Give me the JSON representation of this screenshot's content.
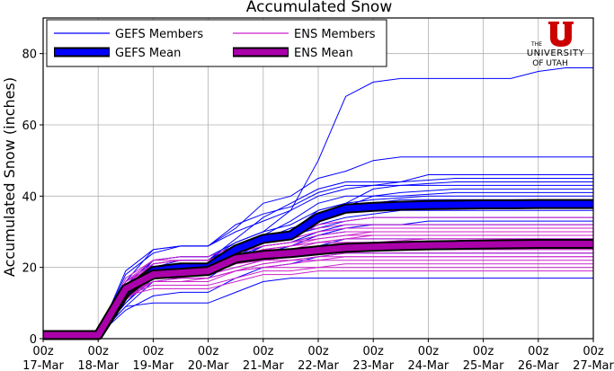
{
  "chart_data": {
    "type": "line",
    "title": "Accumulated Snow",
    "ylabel": "Accumulated Snow (inches)",
    "xlabel": "",
    "ylim": [
      0,
      90
    ],
    "yticks": [
      0,
      20,
      40,
      60,
      80
    ],
    "xticks": [
      {
        "hour": "00z",
        "date": "17-Mar"
      },
      {
        "hour": "00z",
        "date": "18-Mar"
      },
      {
        "hour": "00z",
        "date": "19-Mar"
      },
      {
        "hour": "00z",
        "date": "20-Mar"
      },
      {
        "hour": "00z",
        "date": "21-Mar"
      },
      {
        "hour": "00z",
        "date": "22-Mar"
      },
      {
        "hour": "00z",
        "date": "23-Mar"
      },
      {
        "hour": "00z",
        "date": "24-Mar"
      },
      {
        "hour": "00z",
        "date": "25-Mar"
      },
      {
        "hour": "00z",
        "date": "26-Mar"
      },
      {
        "hour": "00z",
        "date": "27-Mar"
      }
    ],
    "grid": true,
    "legend_position": "top-left",
    "legend": [
      {
        "label": "GEFS Members",
        "kind": "member",
        "color": "#0000ff"
      },
      {
        "label": "ENS Members",
        "kind": "member",
        "color": "#cc22cc"
      },
      {
        "label": "GEFS Mean",
        "kind": "mean",
        "color": "#0000ff"
      },
      {
        "label": "ENS Mean",
        "kind": "mean",
        "color": "#aa00aa"
      }
    ],
    "x_days": [
      0,
      1,
      1.5,
      2,
      2.5,
      3,
      3.5,
      4,
      4.5,
      5,
      5.5,
      6,
      6.5,
      7,
      7.5,
      8,
      8.5,
      9,
      9.5,
      10
    ],
    "series": [
      {
        "name": "GEFS Mean",
        "color": "#0000ff",
        "outline": "#000000",
        "values": [
          1,
          1,
          13,
          19,
          20,
          20,
          25,
          28,
          29,
          34,
          36.5,
          37,
          37.3,
          37.5,
          37.6,
          37.7,
          37.7,
          37.8,
          37.8,
          37.8
        ]
      },
      {
        "name": "ENS Mean",
        "color": "#aa00aa",
        "outline": "#000000",
        "values": [
          1,
          1,
          14,
          18,
          18.5,
          19,
          22.5,
          23.5,
          24,
          24.8,
          25.5,
          25.8,
          26,
          26.2,
          26.3,
          26.4,
          26.5,
          26.6,
          26.6,
          26.6
        ]
      }
    ],
    "gefs_members": [
      [
        1,
        1,
        16,
        25,
        26,
        26,
        31,
        38,
        40,
        45,
        47,
        50,
        51,
        51,
        51,
        51,
        51,
        51,
        51,
        51
      ],
      [
        1,
        1,
        12,
        20,
        22,
        22,
        27,
        30,
        36,
        50,
        68,
        72,
        73,
        73,
        73,
        73,
        73,
        75,
        76,
        76
      ],
      [
        1,
        1,
        14,
        21,
        22,
        22,
        28,
        34,
        38,
        42,
        44,
        44,
        44,
        44.5,
        45,
        45,
        45,
        45,
        45,
        45
      ],
      [
        1,
        1,
        10,
        18,
        19,
        19,
        23,
        27,
        30,
        36,
        38,
        42,
        43,
        43.5,
        44,
        44,
        44,
        44,
        44,
        44
      ],
      [
        1,
        1,
        18,
        24,
        26,
        26,
        30,
        33,
        36,
        40,
        42,
        43,
        44,
        46,
        46,
        46,
        46,
        46,
        46,
        46
      ],
      [
        1,
        1,
        13,
        20,
        21,
        21,
        25,
        28,
        31,
        33,
        37,
        40,
        41,
        41.5,
        42,
        42,
        42,
        42,
        42,
        42
      ],
      [
        1,
        1,
        15,
        22,
        23,
        23,
        27,
        30,
        32,
        36,
        38,
        39,
        39.5,
        40,
        40,
        40,
        40,
        40,
        40,
        40
      ],
      [
        1,
        1,
        11,
        18,
        19,
        19,
        23,
        27,
        29,
        34,
        36,
        37,
        38,
        38,
        38,
        38,
        38,
        38,
        38,
        38
      ],
      [
        1,
        1,
        12,
        19,
        20,
        20,
        24,
        27,
        28,
        32,
        34,
        35,
        36,
        36,
        36,
        36,
        36,
        36,
        36,
        36
      ],
      [
        1,
        1,
        14,
        20,
        21,
        21,
        25,
        28,
        29,
        31,
        33,
        34,
        34,
        34,
        34,
        34,
        34,
        34,
        34,
        34
      ],
      [
        1,
        1,
        9,
        16,
        17,
        17,
        22,
        26,
        27,
        30,
        32,
        32,
        32,
        32,
        32,
        32,
        32,
        32,
        32,
        32
      ],
      [
        1,
        1,
        13,
        19,
        20,
        20,
        23,
        26,
        27,
        29,
        30,
        30,
        30,
        30,
        30,
        30,
        30,
        30,
        30,
        30
      ],
      [
        1,
        1,
        10,
        17,
        18,
        18,
        21,
        23,
        24,
        26,
        28,
        28,
        28,
        28,
        28,
        28,
        28,
        28,
        28,
        28
      ],
      [
        1,
        1,
        12,
        18,
        18,
        18,
        20,
        22,
        23,
        25,
        26,
        26,
        26,
        26,
        26,
        26,
        26,
        26,
        26,
        26
      ],
      [
        1,
        1,
        8,
        12,
        13,
        13,
        17,
        20,
        21,
        23,
        24,
        24,
        24,
        24,
        24,
        24,
        24,
        24,
        24,
        24
      ],
      [
        1,
        1,
        9,
        10,
        10,
        10,
        13,
        16,
        17,
        17,
        17,
        17,
        17,
        17,
        17,
        17,
        17,
        17,
        17,
        17
      ],
      [
        1,
        1,
        19,
        25,
        26,
        26,
        32,
        35,
        37,
        41,
        43,
        43,
        43,
        43,
        43,
        43,
        43,
        43,
        43,
        43
      ],
      [
        1,
        1,
        12,
        17,
        18,
        18,
        22,
        24,
        26,
        29,
        31,
        32,
        32,
        33,
        33,
        33,
        33,
        33,
        33,
        33
      ],
      [
        1,
        1,
        11,
        21,
        22,
        22,
        26,
        29,
        33,
        38,
        40,
        40,
        40,
        40.5,
        41,
        41,
        41,
        41,
        41,
        41
      ],
      [
        1,
        1,
        13,
        22,
        23,
        23,
        26,
        28,
        30,
        35,
        37,
        38,
        39,
        39,
        39,
        39,
        39,
        39,
        39,
        39
      ]
    ],
    "ens_members": [
      [
        1,
        1,
        15,
        21,
        22,
        22,
        25,
        27,
        28,
        30,
        31,
        31,
        31,
        31,
        31,
        31,
        31,
        31,
        31,
        31
      ],
      [
        1,
        1,
        13,
        18,
        19,
        19,
        22,
        24,
        25,
        26,
        27,
        27,
        27.5,
        28,
        28,
        28,
        28,
        28,
        28,
        28
      ],
      [
        1,
        1,
        16,
        20,
        20,
        20,
        23,
        25,
        26,
        27,
        28,
        29,
        29,
        29,
        29,
        29,
        29,
        29,
        29,
        29
      ],
      [
        1,
        1,
        12,
        17,
        18,
        18,
        21,
        23,
        24,
        25,
        26,
        26,
        26,
        26,
        26,
        26,
        26,
        26,
        26,
        26
      ],
      [
        1,
        1,
        14,
        19,
        20,
        20,
        24,
        26,
        27,
        28,
        29,
        30,
        30,
        30,
        30,
        30,
        30,
        30,
        30,
        30
      ],
      [
        1,
        1,
        11,
        16,
        16,
        16,
        19,
        21,
        22,
        23,
        24,
        24,
        24,
        24,
        24,
        24,
        24,
        24,
        24,
        24
      ],
      [
        1,
        1,
        13,
        16,
        16,
        17,
        19,
        20,
        21,
        22,
        22,
        22,
        22,
        22,
        22,
        22,
        22,
        22,
        22,
        22
      ],
      [
        1,
        1,
        15,
        19,
        19,
        19,
        21,
        22,
        22,
        23,
        23,
        23,
        23,
        23,
        23,
        23,
        23,
        23,
        23,
        23
      ],
      [
        1,
        1,
        12,
        15,
        15,
        15,
        17,
        19,
        19,
        20,
        21,
        21,
        21,
        21,
        21,
        21,
        21,
        21,
        21,
        21
      ],
      [
        1,
        1,
        14,
        18,
        18,
        18,
        21,
        24,
        25,
        27,
        27,
        27,
        27,
        27,
        27,
        27,
        27,
        27,
        27,
        27
      ],
      [
        1,
        1,
        16,
        21,
        22,
        22,
        25,
        28,
        29,
        32,
        33,
        34,
        34,
        34,
        34,
        34,
        34,
        34,
        34,
        34
      ],
      [
        1,
        1,
        13,
        17,
        18,
        18,
        20,
        22,
        23,
        24,
        25,
        25,
        25,
        25,
        25,
        25,
        25,
        25,
        25,
        25
      ],
      [
        1,
        1,
        12,
        14,
        14,
        14,
        16,
        18,
        18,
        19,
        19,
        19,
        19,
        19,
        19,
        19,
        19,
        19,
        19,
        19
      ],
      [
        1,
        1,
        17,
        22,
        23,
        23,
        26,
        29,
        30,
        31,
        32,
        32,
        32,
        32,
        32,
        32,
        32,
        32,
        32,
        32
      ],
      [
        1,
        1,
        14,
        19,
        20,
        20,
        23,
        25,
        26,
        28,
        29,
        29,
        29,
        29,
        29,
        29,
        29,
        29,
        29,
        29
      ],
      [
        1,
        1,
        13,
        18,
        18,
        18,
        22,
        25,
        26,
        27,
        28,
        28,
        28,
        28,
        28,
        28,
        28,
        28,
        28,
        28
      ],
      [
        1,
        1,
        15,
        20,
        21,
        21,
        24,
        26,
        27,
        29,
        30,
        30,
        30,
        30,
        30,
        30,
        30,
        30,
        30,
        30
      ],
      [
        1,
        1,
        12,
        16,
        17,
        17,
        19,
        21,
        22,
        22,
        23,
        23,
        23,
        23,
        23,
        23,
        23,
        23,
        23,
        23
      ],
      [
        1,
        1,
        14,
        17,
        17,
        17,
        19,
        20,
        20,
        20,
        20,
        20,
        20,
        20,
        20,
        20,
        20,
        20,
        20,
        20
      ],
      [
        1,
        1,
        16,
        22,
        22,
        22,
        25,
        27,
        28,
        30,
        31,
        31,
        31,
        31,
        31,
        31,
        31,
        31,
        31,
        31
      ],
      [
        1,
        1,
        13,
        19,
        19,
        19,
        23,
        25,
        25,
        26,
        26,
        26,
        26,
        26,
        26,
        26,
        26,
        26,
        26,
        26
      ],
      [
        1,
        1,
        11,
        17,
        18,
        18,
        20,
        22,
        23,
        24,
        25,
        25,
        25,
        25,
        25,
        25,
        25,
        25,
        25,
        25
      ]
    ]
  },
  "logo": {
    "line1": "THE",
    "line2": "UNIVERSITY",
    "line3": "OF UTAH",
    "color": "#cc0000"
  }
}
